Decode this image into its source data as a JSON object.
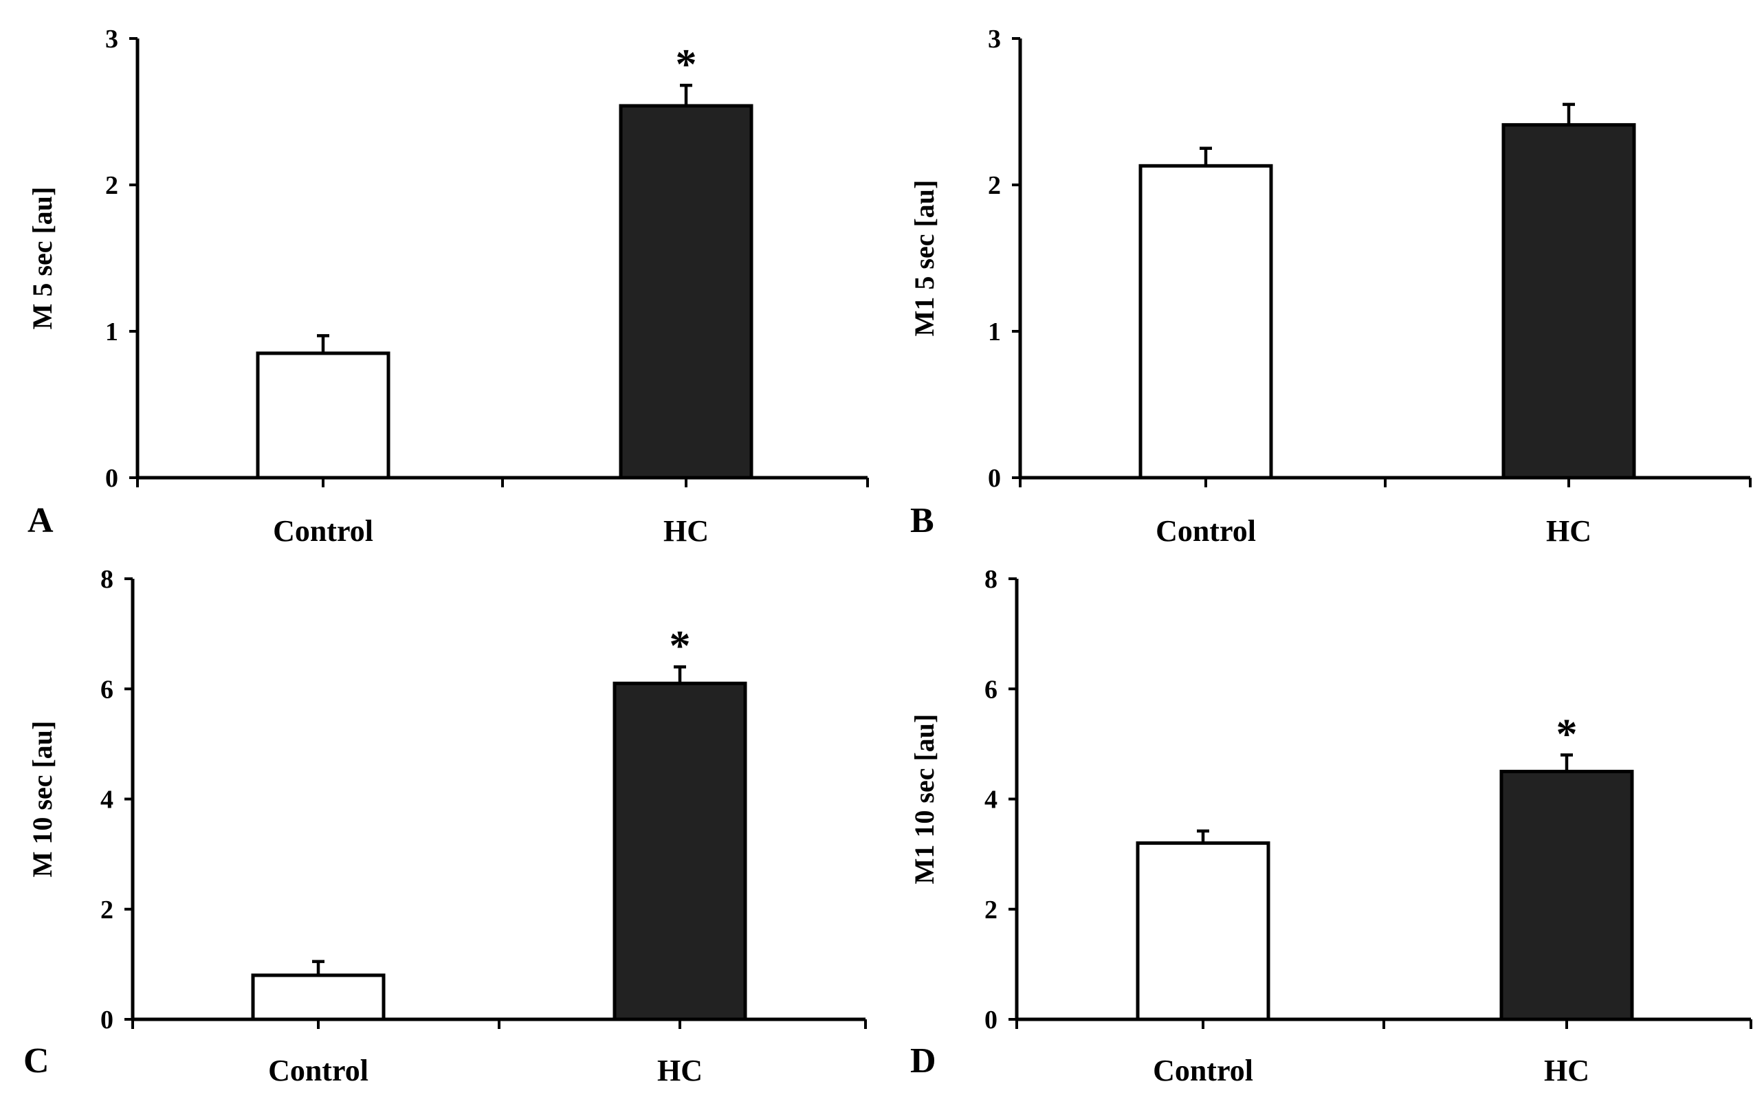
{
  "chart_data": [
    {
      "panel": "A",
      "type": "bar",
      "categories": [
        "Control",
        "HC"
      ],
      "values": [
        0.85,
        2.54
      ],
      "errors": [
        0.12,
        0.14
      ],
      "significance": [
        "",
        "*"
      ],
      "ylabel": "M 5 sec  [au]",
      "ylim": [
        0,
        3
      ],
      "yticks": [
        "0",
        "1",
        "2",
        "3"
      ],
      "bar_colors": [
        "#ffffff",
        "#222222"
      ]
    },
    {
      "panel": "B",
      "type": "bar",
      "categories": [
        "Control",
        "HC"
      ],
      "values": [
        2.13,
        2.41
      ],
      "errors": [
        0.12,
        0.14
      ],
      "significance": [
        "",
        ""
      ],
      "ylabel": "M1 5 sec  [au]",
      "ylim": [
        0,
        3
      ],
      "yticks": [
        "0",
        "1",
        "2",
        "3"
      ],
      "bar_colors": [
        "#ffffff",
        "#222222"
      ]
    },
    {
      "panel": "C",
      "type": "bar",
      "categories": [
        "Control",
        "HC"
      ],
      "values": [
        0.8,
        6.1
      ],
      "errors": [
        0.25,
        0.3
      ],
      "significance": [
        "",
        "*"
      ],
      "ylabel": "M 10 sec  [au]",
      "ylim": [
        0,
        8
      ],
      "yticks": [
        "0",
        "2",
        "4",
        "6",
        "8"
      ],
      "bar_colors": [
        "#ffffff",
        "#222222"
      ]
    },
    {
      "panel": "D",
      "type": "bar",
      "categories": [
        "Control",
        "HC"
      ],
      "values": [
        3.2,
        4.5
      ],
      "errors": [
        0.22,
        0.3
      ],
      "significance": [
        "",
        "*"
      ],
      "ylabel": "M1 10 sec  [au]",
      "ylim": [
        0,
        8
      ],
      "yticks": [
        "0",
        "2",
        "4",
        "6",
        "8"
      ],
      "bar_colors": [
        "#ffffff",
        "#222222"
      ]
    }
  ]
}
